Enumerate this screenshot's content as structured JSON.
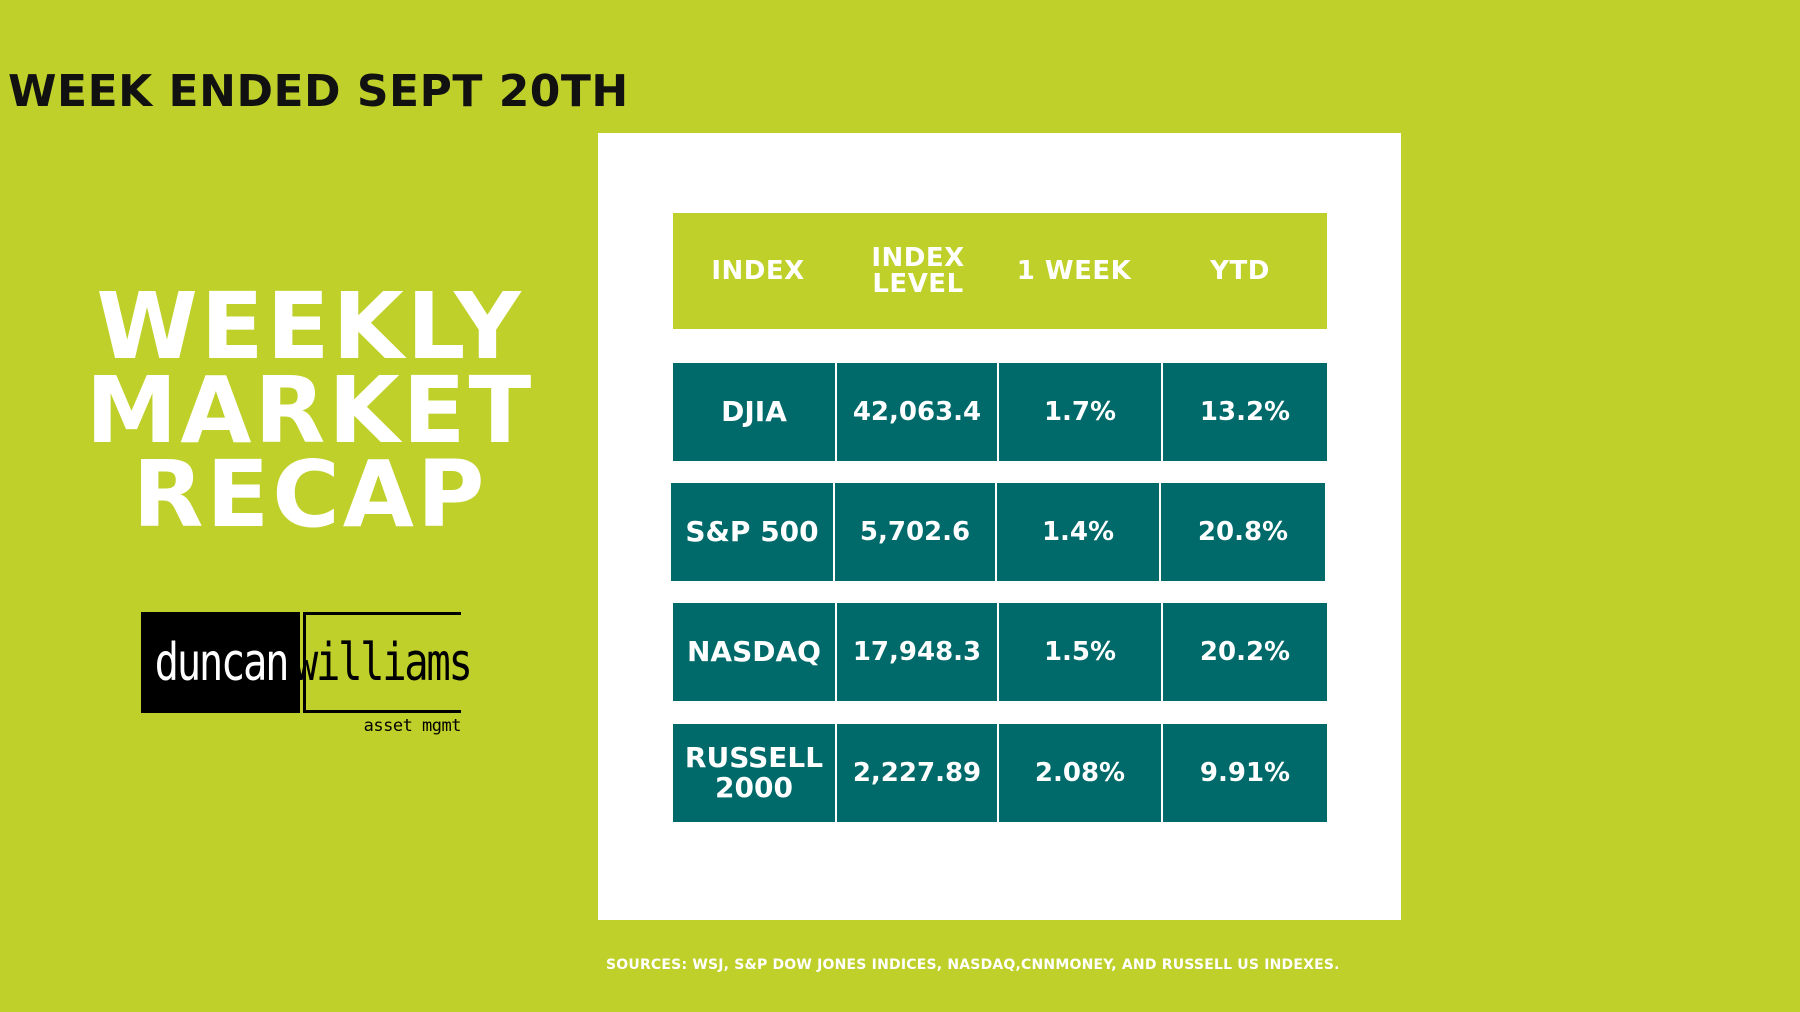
{
  "header": {
    "week_ended": "WEEK ENDED SEPT 20TH"
  },
  "title": {
    "line1": "WEEKLY",
    "line2": "MARKET",
    "line3": "RECAP"
  },
  "logo": {
    "left_word": "duncan",
    "right_word": "williams",
    "tagline": "asset mgmt"
  },
  "table": {
    "headers": {
      "index": "INDEX",
      "level_line1": "INDEX",
      "level_line2": "LEVEL",
      "week": "1 WEEK",
      "ytd": "YTD"
    },
    "rows": [
      {
        "name_line1": "DJIA",
        "name_line2": "",
        "level": "42,063.4",
        "week": "1.7%",
        "ytd": "13.2%"
      },
      {
        "name_line1": "S&P 500",
        "name_line2": "",
        "level": "5,702.6",
        "week": "1.4%",
        "ytd": "20.8%"
      },
      {
        "name_line1": "NASDAQ",
        "name_line2": "",
        "level": "17,948.3",
        "week": "1.5%",
        "ytd": "20.2%"
      },
      {
        "name_line1": "RUSSELL",
        "name_line2": "2000",
        "level": "2,227.89",
        "week": "2.08%",
        "ytd": "9.91%"
      }
    ]
  },
  "footer": {
    "sources": "SOURCES: WSJ, S&P DOW JONES INDICES, NASDAQ,CNNMONEY,   AND  RUSSELL US INDEXES."
  },
  "colors": {
    "background": "#bfd02a",
    "card": "#ffffff",
    "cell": "#006a6a",
    "text_light": "#ffffff",
    "text_dark": "#111111"
  }
}
